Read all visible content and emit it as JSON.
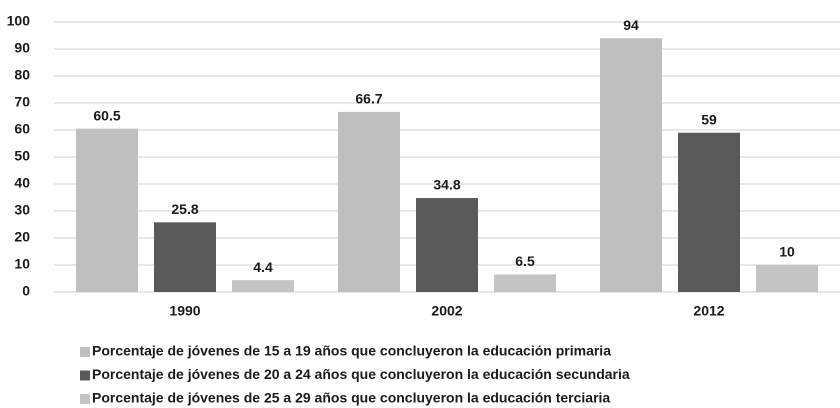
{
  "chart_data": {
    "type": "bar",
    "categories": [
      "1990",
      "2002",
      "2012"
    ],
    "series": [
      {
        "name": "Porcentaje de jóvenes de 15 a 19 años que concluyeron la educación primaria",
        "color": "#bfbfbf",
        "values": [
          60.5,
          66.7,
          94
        ]
      },
      {
        "name": "Porcentaje de jóvenes de 20 a 24 años que concluyeron la educación secundaria",
        "color": "#595959",
        "values": [
          25.8,
          34.8,
          59
        ]
      },
      {
        "name": "Porcentaje de jóvenes de 25 a 29 años que concluyeron la educación terciaria",
        "color": "#c4c4c4",
        "values": [
          4.4,
          6.5,
          10
        ]
      }
    ],
    "ylim": [
      0,
      100
    ],
    "yticks": [
      0,
      10,
      20,
      30,
      40,
      50,
      60,
      70,
      80,
      90,
      100
    ],
    "grid": true
  }
}
